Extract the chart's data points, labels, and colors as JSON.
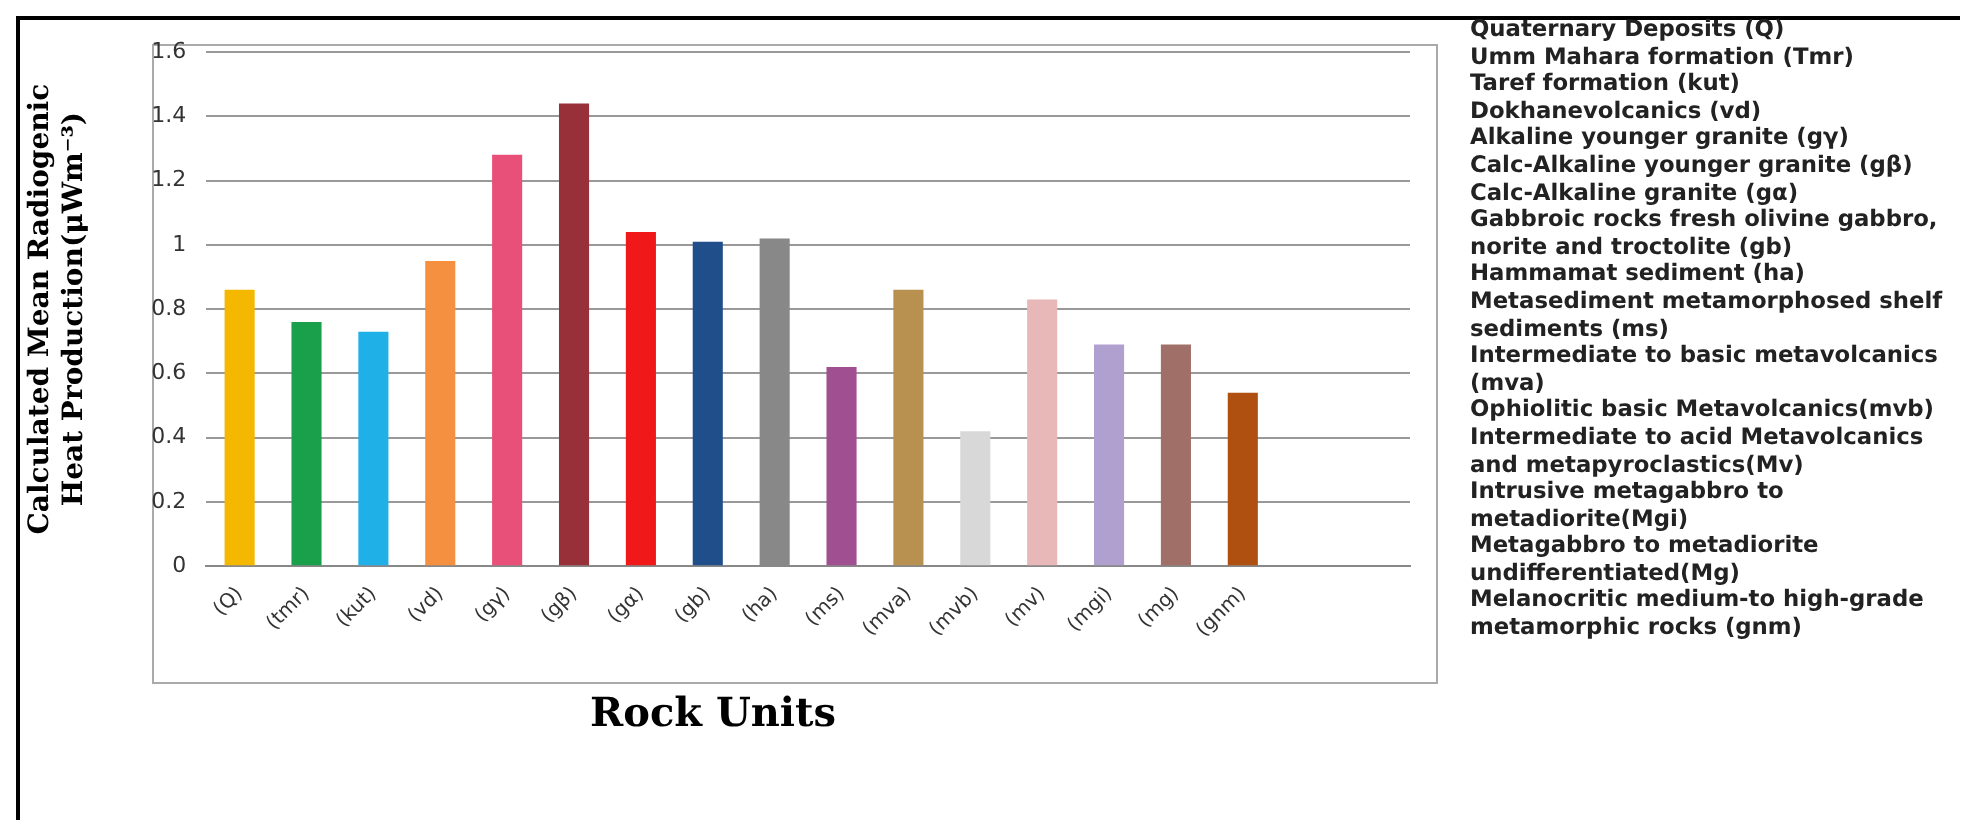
{
  "chart_data": {
    "type": "bar",
    "xlabel": "Rock Units",
    "ylabel": "Calculated Mean Radiogenic Heat Production(μWm⁻³)",
    "categories": [
      "(Q)",
      "(tmr)",
      "(kut)",
      "(vd)",
      "(gγ)",
      "(gβ)",
      "(gα)",
      "(gb)",
      "(ha)",
      "(ms)",
      "(mva)",
      "(mvb)",
      "(mv)",
      "(mgi)",
      "(mg)",
      "(gnm)",
      null,
      null
    ],
    "values": [
      0.86,
      0.76,
      0.73,
      0.95,
      1.28,
      1.44,
      1.04,
      1.01,
      1.02,
      0.62,
      0.86,
      0.42,
      0.83,
      0.69,
      0.69,
      0.54,
      null,
      null
    ],
    "colors": [
      "#f5b800",
      "#1aa04a",
      "#1fb0e8",
      "#f59040",
      "#e8507a",
      "#98303a",
      "#f01818",
      "#204e8a",
      "#888888",
      "#a05090",
      "#b89050",
      "#d8d8d8",
      "#e8b8b8",
      "#b0a0d0",
      "#a07068",
      "#b05010",
      "#cccccc",
      "#cccccc"
    ],
    "ylim": [
      0,
      1.6
    ],
    "yticks": [
      0,
      0.2,
      0.4,
      0.6,
      0.8,
      1,
      1.2,
      1.4,
      1.6
    ],
    "grid": "y",
    "legend": false,
    "annotations": [
      "Quaternary Deposits (Q)",
      "Umm Mahara formation (Tmr)",
      "Taref formation (kut)",
      "Dokhanevolcanics (vd)",
      "Alkaline younger granite (gγ)",
      "Calc-Alkaline younger granite (gβ)",
      "Calc-Alkaline granite (gα)",
      "Gabbroic rocks fresh olivine gabbro, norite and troctolite (gb)",
      "Hammamat sediment (ha)",
      "Metasediment metamorphosed shelf sediments (ms)",
      "Intermediate to basic metavolcanics (mva)",
      "Ophiolitic basic Metavolcanics(mvb)",
      "Intermediate to acid Metavolcanics and metapyroclastics(Mv)",
      "Intrusive metagabbro to metadiorite(Mgi)",
      "Metagabbro to metadiorite undifferentiated(Mg)",
      "Melanocritic medium-to high-grade metamorphic rocks (gnm)"
    ]
  }
}
